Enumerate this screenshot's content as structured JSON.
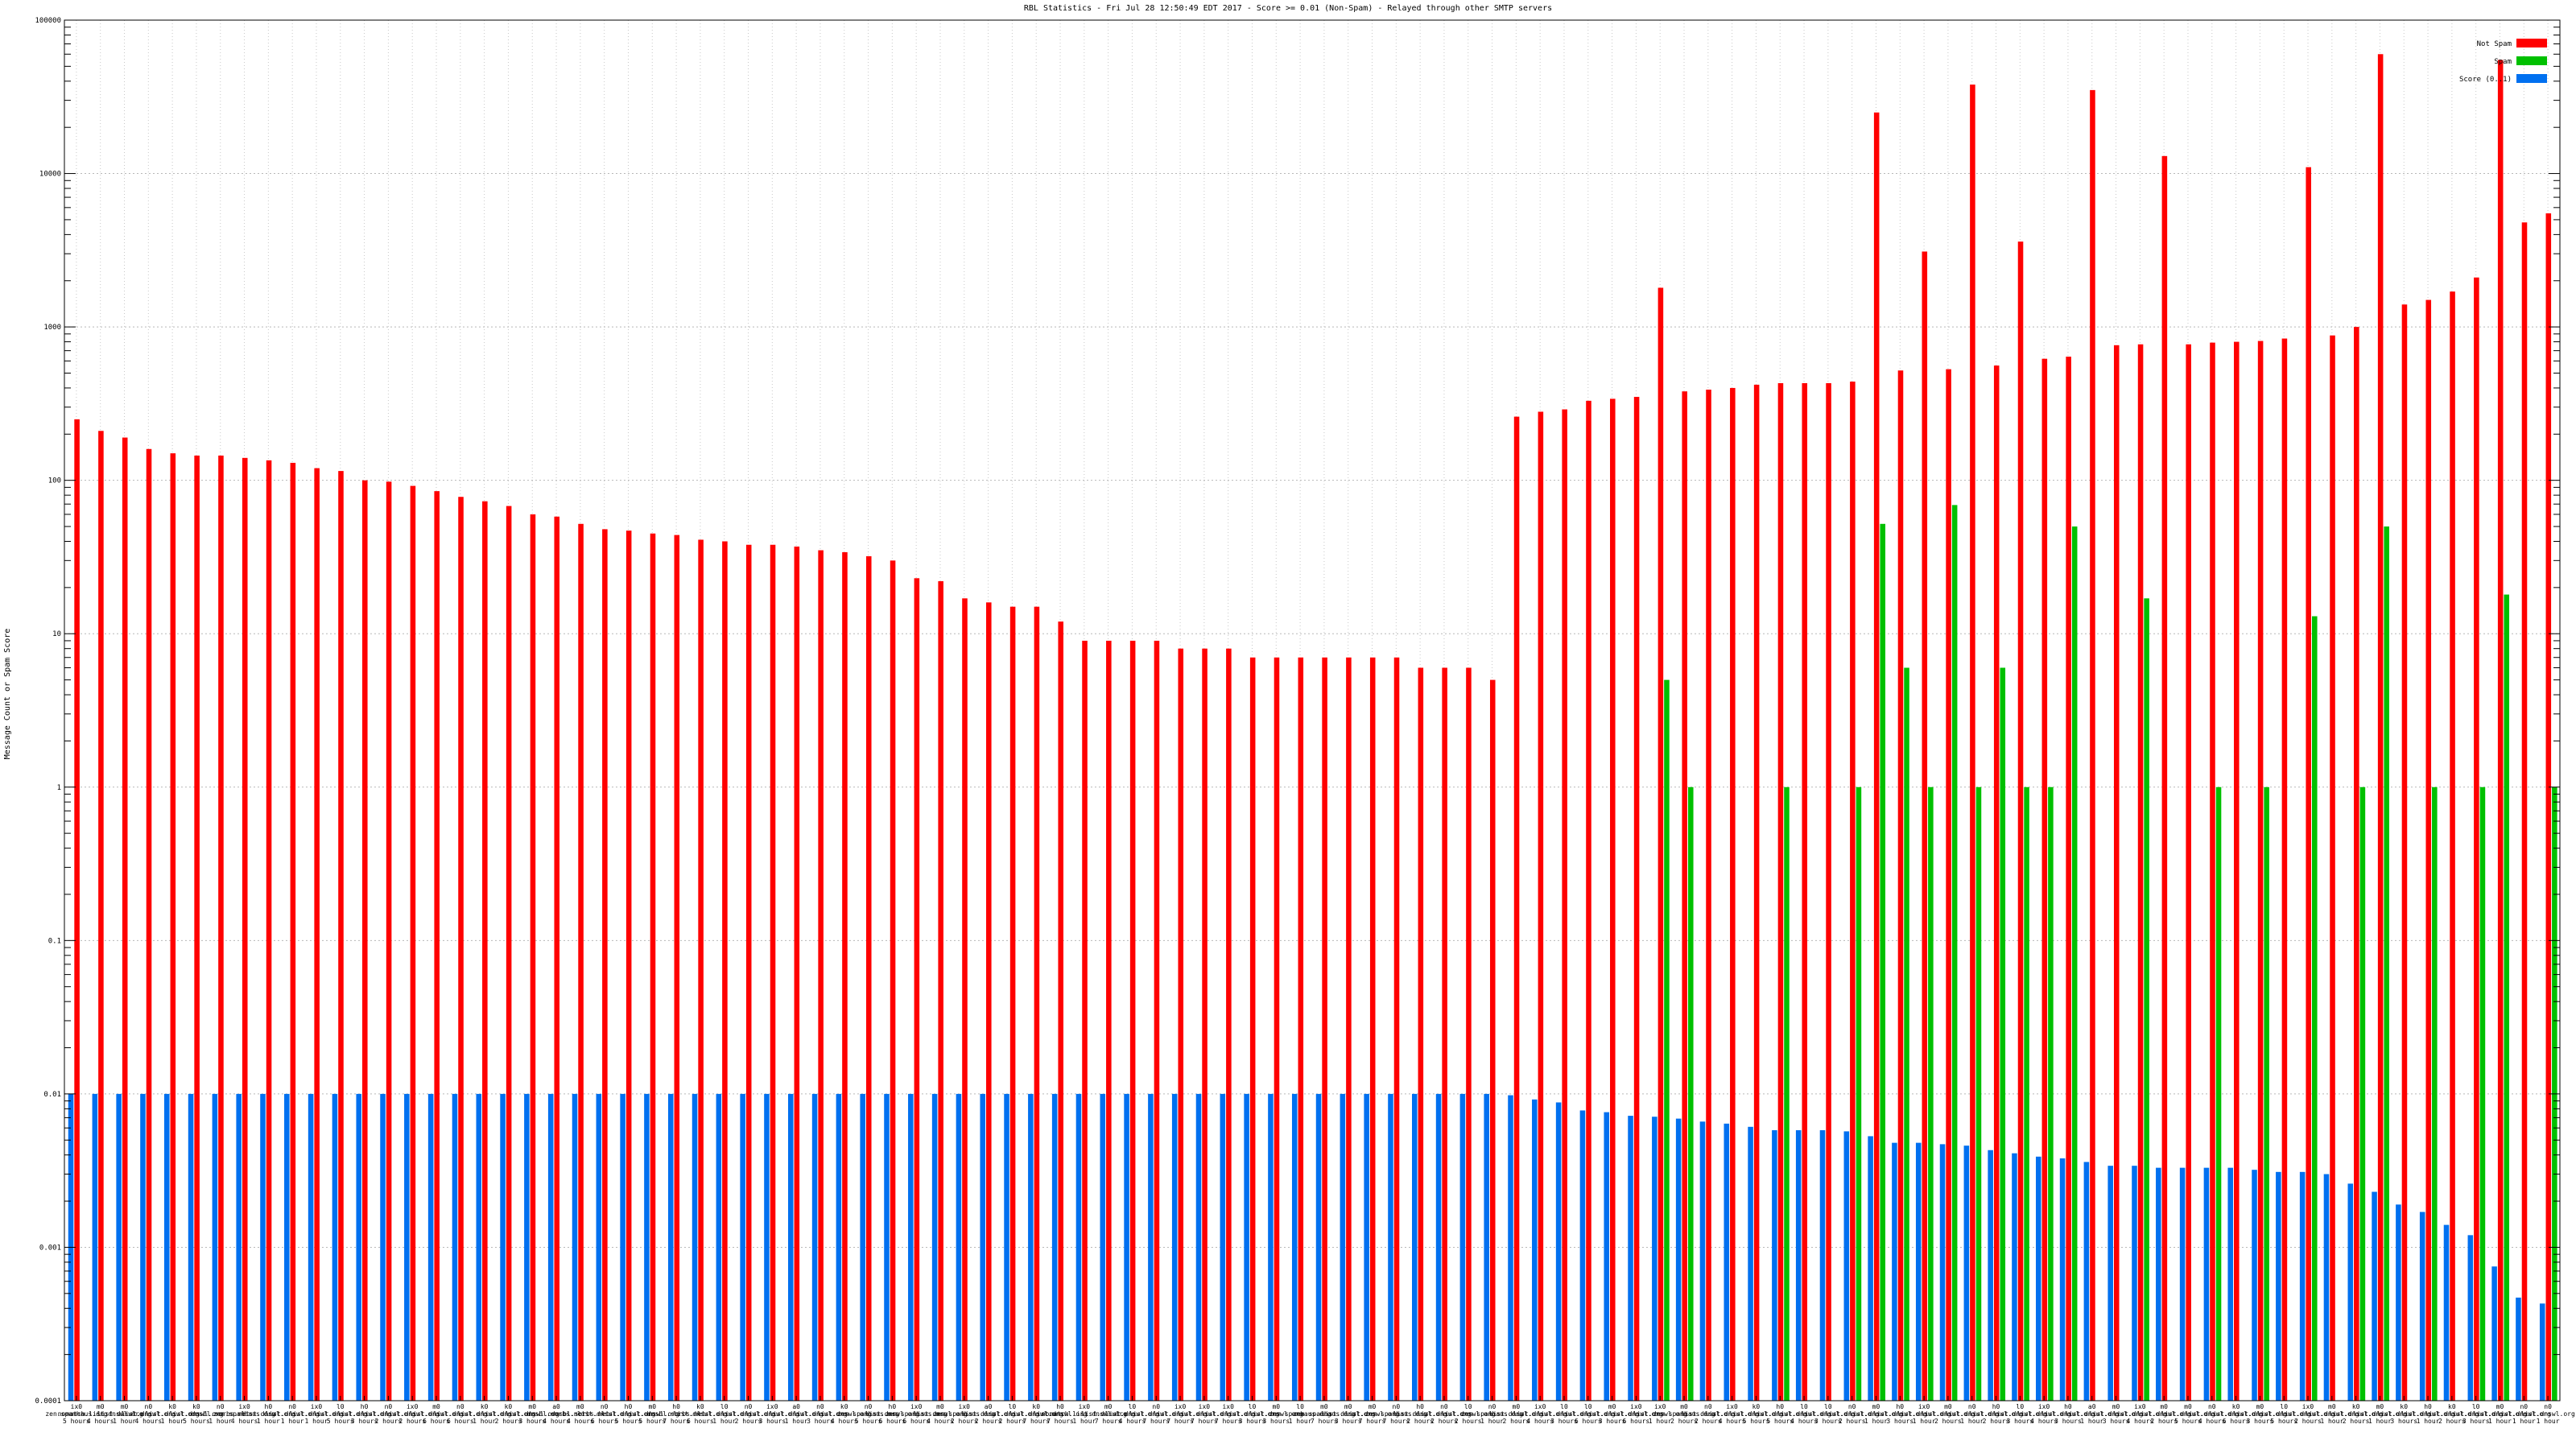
{
  "chart_data": {
    "type": "bar",
    "title": "RBL Statistics - Fri Jul 28 12:50:49 EDT 2017 - Score >= 0.01 (Non-Spam) - Relayed through other SMTP servers",
    "xlabel": "",
    "ylabel": "Message Count or Spam Score",
    "yscale": "log",
    "ylim": [
      0.0001,
      100000
    ],
    "yticks": [
      {
        "value": 100000,
        "label": "100000"
      },
      {
        "value": 10000,
        "label": "10000"
      },
      {
        "value": 1000,
        "label": "1000"
      },
      {
        "value": 100,
        "label": "100"
      },
      {
        "value": 10,
        "label": "10"
      },
      {
        "value": 1,
        "label": "1"
      },
      {
        "value": 0.1,
        "label": "0.1"
      },
      {
        "value": 0.01,
        "label": "0.01"
      },
      {
        "value": 0.001,
        "label": "0.001"
      },
      {
        "value": 0.0001,
        "label": "0.0001"
      }
    ],
    "grid": true,
    "legend_position": "top-right",
    "series": [
      {
        "name": "Not Spam",
        "color": "#ff0000",
        "values": [
          250,
          210,
          190,
          160,
          150,
          145,
          145,
          140,
          135,
          130,
          120,
          115,
          100,
          98,
          92,
          85,
          78,
          73,
          68,
          60,
          58,
          52,
          48,
          47,
          45,
          44,
          41,
          40,
          38,
          38,
          37,
          35,
          34,
          32,
          30,
          23,
          22,
          17,
          16,
          15,
          15,
          12,
          9,
          9,
          9,
          9,
          8,
          8,
          8,
          7,
          7,
          7,
          7,
          7,
          7,
          7,
          6,
          6,
          6,
          5,
          260,
          280,
          290,
          330,
          340,
          350,
          1800,
          380,
          390,
          400,
          420,
          430,
          430,
          430,
          440,
          25000,
          520,
          3100,
          530,
          38000,
          560,
          3600,
          620,
          640,
          35000,
          760,
          770,
          13000,
          770,
          790,
          800,
          810,
          840,
          11000,
          880,
          1000,
          60000,
          1400,
          1500,
          1700,
          2100,
          55000,
          4800,
          5500
        ]
      },
      {
        "name": "Spam",
        "color": "#00c000",
        "values": [
          0,
          0,
          0,
          0,
          0,
          0,
          0,
          0,
          0,
          0,
          0,
          0,
          0,
          0,
          0,
          0,
          0,
          0,
          0,
          0,
          0,
          0,
          0,
          0,
          0,
          0,
          0,
          0,
          0,
          0,
          0,
          0,
          0,
          0,
          0,
          0,
          0,
          0,
          0,
          0,
          0,
          0,
          0,
          0,
          0,
          0,
          0,
          0,
          0,
          0,
          0,
          0,
          0,
          0,
          0,
          0,
          0,
          0,
          0,
          0,
          0,
          0,
          0,
          0,
          0,
          0,
          5,
          1,
          0,
          0,
          0,
          1,
          0,
          0,
          1,
          52,
          6,
          1,
          69,
          1,
          6,
          1,
          1,
          50,
          0,
          0,
          17,
          0,
          0,
          1,
          0,
          1,
          0,
          13,
          0,
          1,
          50,
          0,
          1,
          0,
          1,
          18,
          0,
          1
        ]
      },
      {
        "name": "Score (0..1)",
        "color": "#0070f0",
        "values": [
          0.01,
          0.01,
          0.01,
          0.01,
          0.01,
          0.01,
          0.01,
          0.01,
          0.01,
          0.01,
          0.01,
          0.01,
          0.01,
          0.01,
          0.01,
          0.01,
          0.01,
          0.01,
          0.01,
          0.01,
          0.01,
          0.01,
          0.01,
          0.01,
          0.01,
          0.01,
          0.01,
          0.01,
          0.01,
          0.01,
          0.01,
          0.01,
          0.01,
          0.01,
          0.01,
          0.01,
          0.01,
          0.01,
          0.01,
          0.01,
          0.01,
          0.01,
          0.01,
          0.01,
          0.01,
          0.01,
          0.01,
          0.01,
          0.01,
          0.01,
          0.01,
          0.01,
          0.01,
          0.01,
          0.01,
          0.01,
          0.01,
          0.01,
          0.01,
          0.01,
          0.0098,
          0.0092,
          0.0088,
          0.0078,
          0.0076,
          0.0072,
          0.0071,
          0.0069,
          0.0066,
          0.0064,
          0.0061,
          0.0058,
          0.0058,
          0.0058,
          0.0057,
          0.0053,
          0.0048,
          0.0048,
          0.0047,
          0.0046,
          0.0043,
          0.0041,
          0.0039,
          0.0038,
          0.0036,
          0.0034,
          0.0034,
          0.0033,
          0.0033,
          0.0033,
          0.0033,
          0.0032,
          0.0031,
          0.0031,
          0.003,
          0.0026,
          0.0023,
          0.0019,
          0.0017,
          0.0014,
          0.0012,
          0.00075,
          0.00047,
          0.00043
        ]
      }
    ],
    "categories": [
      "ix0 zen.spamhaus.org 5 hours",
      "m0 nomatch.list.dnswl.org 4 hours",
      "m0 list.dnswl.org 1 hour",
      "n0 list.dnswl.org 4 hours",
      "k0 list.dnswl.org 1 hour",
      "k0 list.dnswl.org 5 hours",
      "n0 dnsbl.sorbs.net 1 hour",
      "ix0 zen.spamhaus.org 4 hours",
      "h0 list.dnswl.org 1 hour",
      "n0 list.dnswl.org 1 hour",
      "ix0 list.dnswl.org 1 hour",
      "l0 list.dnswl.org 5 hours",
      "h0 list.dnswl.org 3 hours",
      "n0 list.dnswl.org 2 hours",
      "ix0 list.dnswl.org 2 hours",
      "m0 list.dnswl.org 6 hours",
      "n0 list.dnswl.org 6 hours",
      "k0 list.dnswl.org 1 hour",
      "k0 list.dnswl.org 2 hours",
      "m0 list.dnswl.org 3 hours",
      "a0 dnsbl.sorbs.net 4 hours",
      "m0 dnsbl.sorbs.net 4 hours",
      "n0 list.dnswl.org 6 hours",
      "h0 list.dnswl.org 5 hours",
      "m0 list.dnswl.org 5 hours",
      "h0 dnsbl.sorbs.net 7 hours",
      "k0 list.dnswl.org 6 hours",
      "l0 list.dnswl.org 1 hour",
      "n0 list.dnswl.org 2 hours",
      "ix0 list.dnswl.org 3 hours",
      "a0 list.dnswl.org 1 hour",
      "n0 list.dnswl.org 3 hours",
      "k0 list.dnswl.org 4 hours",
      "n0 zen.spamhaus.org 5 hours",
      "h0 list.dnswl.org 6 hours",
      "ix0 zen.spamhaus.org 6 hours",
      "m0 list.dnswl.org 4 hours",
      "ix0 zen.spamhaus.org 2 hours",
      "a0 list.dnswl.org 2 hours",
      "l0 list.dnswl.org 2 hours",
      "k0 list.dnswl.org 7 hours",
      "h0 list.dnswl.org 7 hours",
      "ix0 nomatch.list.dnswl.org 1 hour",
      "m0 list.dnswl.org 7 hours",
      "l0 list.dnswl.org 4 hours",
      "n0 list.dnswl.org 7 hours",
      "ix0 list.dnswl.org 7 hours",
      "ix0 list.dnswl.org 7 hours",
      "ix0 list.dnswl.org 7 hours",
      "l0 list.dnswl.org 3 hours",
      "m0 list.dnswl.org 3 hours",
      "l0 zen.spamhaus.org 1 hour",
      "m0 zen.spamhaus.org 7 hours",
      "m0 list.dnswl.org 3 hours",
      "m0 list.dnswl.org 7 hours",
      "n0 zen.spamhaus.org 7 hours",
      "h0 list.dnswl.org 2 hours",
      "n0 list.dnswl.org 2 hours",
      "l0 list.dnswl.org 2 hours",
      "n0 zen.spamhaus.org 1 hour",
      "m0 list.dnswl.org 2 hours",
      "ix0 list.dnswl.org 4 hours",
      "l0 list.dnswl.org 3 hours",
      "l0 list.dnswl.org 6 hours",
      "m0 list.dnswl.org 3 hours",
      "ix0 list.dnswl.org 6 hours",
      "ix0 list.dnswl.org 1 hour",
      "m0 zen.spamhaus.org 2 hours",
      "n0 list.dnswl.org 2 hours",
      "ix0 list.dnswl.org 4 hours",
      "k0 list.dnswl.org 5 hours",
      "h0 list.dnswl.org 5 hours",
      "l0 list.dnswl.org 4 hours",
      "l0 list.dnswl.org 3 hours",
      "n0 list.dnswl.org 2 hours",
      "m0 list.dnswl.org 1 hour",
      "h0 list.dnswl.org 3 hours",
      "ix0 list.dnswl.org 1 hour",
      "m0 list.dnswl.org 2 hours",
      "n0 list.dnswl.org 1 hour",
      "h0 list.dnswl.org 2 hours",
      "l0 list.dnswl.org 3 hours",
      "ix0 list.dnswl.org 4 hours",
      "h0 list.dnswl.org 3 hours",
      "a0 list.dnswl.org 1 hour",
      "m0 list.dnswl.org 3 hours",
      "ix0 list.dnswl.org 4 hours",
      "m0 list.dnswl.org 2 hours",
      "m0 list.dnswl.org 5 hours",
      "n0 list.dnswl.org 4 hours",
      "k0 list.dnswl.org 6 hours",
      "m0 list.dnswl.org 3 hours",
      "l0 list.dnswl.org 5 hours",
      "ix0 list.dnswl.org 2 hours",
      "m0 list.dnswl.org 1 hour",
      "k0 list.dnswl.org 2 hours",
      "m0 list.dnswl.org 1 hour",
      "k0 list.dnswl.org 3 hours",
      "h0 list.dnswl.org 1 hour",
      "k0 list.dnswl.org 2 hours",
      "l0 list.dnswl.org 3 hours",
      "m0 list.dnswl.org 1 hour",
      "n0 list.dnswl.org 1 hour",
      "n0 list.dnswl.org 1 hour"
    ]
  }
}
